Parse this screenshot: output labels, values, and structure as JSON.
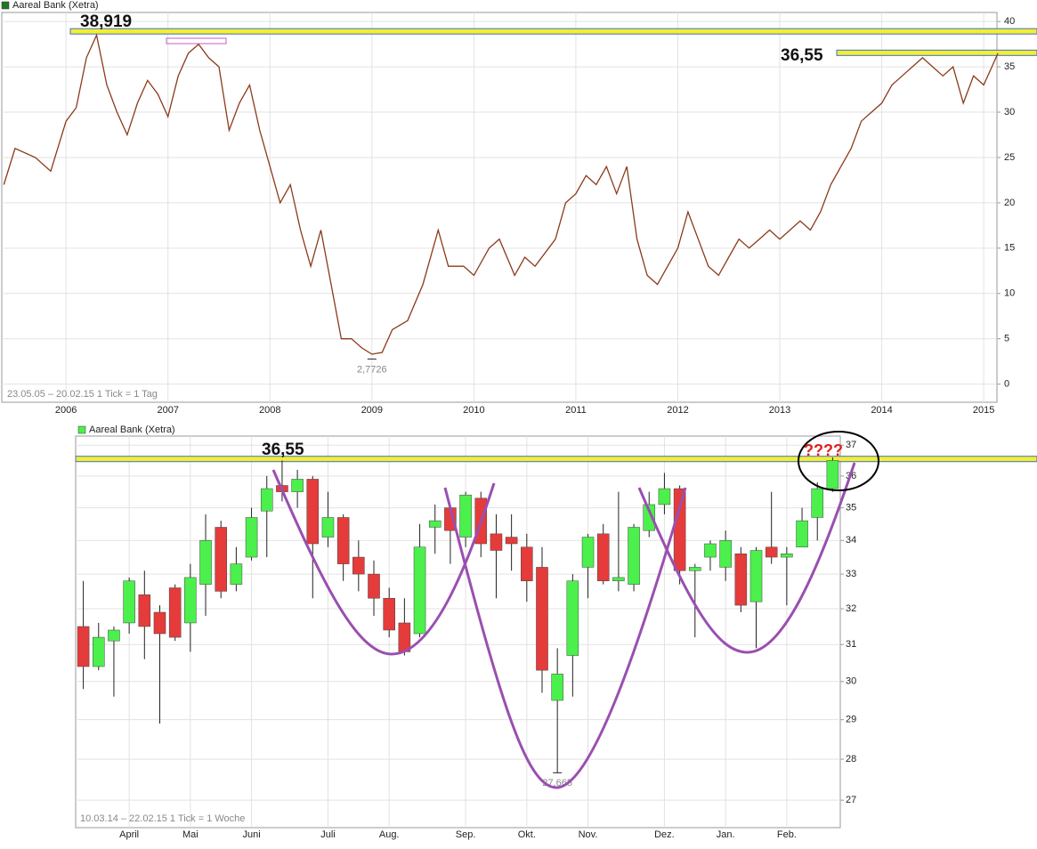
{
  "chart_data": [
    {
      "type": "line",
      "log": false,
      "x": [
        2005.39,
        2005.5,
        2005.7,
        2005.85,
        2006.0,
        2006.1,
        2006.2,
        2006.3,
        2006.4,
        2006.5,
        2006.6,
        2006.7,
        2006.8,
        2006.9,
        2007.0,
        2007.1,
        2007.2,
        2007.3,
        2007.4,
        2007.5,
        2007.6,
        2007.7,
        2007.8,
        2007.9,
        2008.0,
        2008.1,
        2008.2,
        2008.3,
        2008.4,
        2008.5,
        2008.6,
        2008.7,
        2008.8,
        2008.9,
        2009.0,
        2009.1,
        2009.2,
        2009.35,
        2009.5,
        2009.65,
        2009.75,
        2009.9,
        2010.0,
        2010.15,
        2010.25,
        2010.4,
        2010.5,
        2010.6,
        2010.8,
        2010.9,
        2011.0,
        2011.1,
        2011.2,
        2011.3,
        2011.4,
        2011.5,
        2011.6,
        2011.7,
        2011.8,
        2011.9,
        2012.0,
        2012.1,
        2012.2,
        2012.3,
        2012.4,
        2012.5,
        2012.6,
        2012.7,
        2012.8,
        2012.9,
        2013.0,
        2013.1,
        2013.2,
        2013.3,
        2013.4,
        2013.5,
        2013.6,
        2013.7,
        2013.8,
        2013.9,
        2014.0,
        2014.1,
        2014.2,
        2014.3,
        2014.4,
        2014.5,
        2014.6,
        2014.7,
        2014.8,
        2014.9,
        2015.0,
        2015.1,
        2015.14
      ],
      "series": [
        {
          "name": "Aareal Bank (Xetra)",
          "color": "#1f7a1f",
          "line_color": "#8b3a1a",
          "values": [
            22,
            26,
            25,
            23.5,
            29,
            30.5,
            36,
            38.5,
            33,
            30,
            27.5,
            31,
            33.5,
            32,
            29.5,
            34,
            36.5,
            37.5,
            36,
            35,
            28,
            31,
            33,
            28,
            24,
            20,
            22,
            17,
            13,
            17,
            11,
            5,
            5,
            4,
            3.3,
            3.5,
            6,
            7,
            11,
            17,
            13,
            13,
            12,
            15,
            16,
            12,
            14,
            13,
            16,
            20,
            21,
            23,
            22,
            24,
            21,
            24,
            16,
            12,
            11,
            13,
            15,
            19,
            16,
            13,
            12,
            14,
            16,
            15,
            16,
            17,
            16,
            17,
            18,
            17,
            19,
            22,
            24,
            26,
            29,
            30,
            31,
            33,
            34,
            35,
            36,
            35,
            34,
            35,
            31,
            34,
            33,
            35.5,
            36.5
          ]
        }
      ],
      "xlim": [
        2005.37,
        2015.13
      ],
      "xticks": [
        2006,
        2007,
        2008,
        2009,
        2010,
        2011,
        2012,
        2013,
        2014,
        2015
      ],
      "ylim": [
        -2,
        41
      ],
      "yticks": [
        0,
        5,
        10,
        15,
        20,
        25,
        30,
        35,
        40
      ],
      "grid": true,
      "levels": [
        {
          "label": "38,919",
          "value": 38.919
        },
        {
          "label": "36,55",
          "value": 36.55
        }
      ],
      "low_label": {
        "label": "2,7726",
        "value": 2.7726
      },
      "footer": "23.05.05 – 20.02.15   1 Tick = 1 Tag"
    },
    {
      "type": "candlestick",
      "log": true,
      "categories": [
        null,
        null,
        null,
        "April",
        null,
        null,
        null,
        "Mai",
        null,
        null,
        null,
        "Juni",
        null,
        null,
        null,
        null,
        "Juli",
        null,
        null,
        null,
        "Aug.",
        null,
        null,
        null,
        null,
        "Sep.",
        null,
        null,
        null,
        "Okt.",
        null,
        null,
        null,
        "Nov.",
        null,
        null,
        null,
        null,
        "Dez.",
        null,
        null,
        null,
        "Jan.",
        null,
        null,
        null,
        "Feb.",
        null,
        null,
        null
      ],
      "series": [
        {
          "name": "Aareal Bank (Xetra)",
          "up_color": "#4cf04c",
          "down_color": "#e53b3b",
          "open": [
            31.5,
            30.4,
            31.1,
            31.6,
            32.4,
            31.9,
            32.6,
            31.6,
            32.7,
            34.4,
            32.7,
            33.5,
            34.9,
            35.7,
            35.5,
            35.9,
            34.1,
            34.7,
            33.5,
            33.0,
            32.3,
            31.6,
            31.3,
            34.4,
            35.0,
            34.1,
            35.3,
            34.2,
            34.1,
            33.8,
            33.2,
            29.5,
            30.7,
            33.2,
            34.2,
            32.8,
            32.7,
            34.3,
            35.1,
            35.6,
            33.1,
            33.5,
            33.2,
            33.6,
            32.2,
            33.8,
            33.5,
            33.8,
            34.7,
            35.6
          ],
          "high": [
            32.8,
            31.6,
            31.5,
            32.9,
            33.1,
            32.1,
            32.7,
            33.3,
            34.8,
            34.6,
            33.8,
            35.0,
            36.0,
            36.5,
            36.2,
            36.0,
            35.5,
            34.8,
            34.0,
            33.4,
            32.6,
            32.3,
            34.5,
            35.1,
            35.1,
            35.5,
            35.5,
            34.8,
            34.8,
            34.2,
            33.8,
            30.9,
            33.0,
            34.2,
            34.5,
            35.5,
            34.5,
            35.5,
            36.1,
            35.7,
            33.3,
            34.0,
            34.3,
            33.8,
            33.8,
            35.5,
            33.8,
            35.0,
            35.8,
            36.6
          ],
          "low": [
            29.8,
            30.3,
            29.6,
            31.3,
            30.6,
            28.9,
            31.1,
            30.8,
            31.8,
            32.3,
            32.5,
            33.4,
            33.5,
            35.2,
            35.0,
            32.3,
            33.8,
            32.8,
            32.5,
            31.8,
            31.2,
            30.7,
            31.2,
            33.6,
            33.3,
            33.8,
            33.5,
            32.3,
            33.1,
            32.2,
            29.7,
            27.665,
            29.6,
            32.3,
            32.7,
            32.5,
            32.5,
            34.1,
            34.8,
            32.7,
            31.2,
            33.1,
            32.8,
            31.9,
            30.9,
            33.3,
            32.1,
            33.8,
            34.0,
            35.5
          ],
          "close": [
            30.4,
            31.2,
            31.4,
            32.8,
            31.5,
            31.3,
            31.2,
            32.9,
            34.0,
            32.5,
            33.3,
            34.7,
            35.6,
            35.5,
            35.9,
            33.9,
            34.7,
            33.3,
            33.0,
            32.3,
            31.4,
            30.8,
            33.8,
            34.6,
            34.3,
            35.4,
            33.9,
            33.7,
            33.9,
            32.8,
            30.3,
            30.2,
            32.8,
            34.1,
            32.8,
            32.9,
            34.4,
            35.1,
            35.6,
            33.1,
            33.2,
            33.9,
            34.0,
            32.1,
            33.7,
            33.5,
            33.6,
            34.6,
            35.6,
            36.5
          ]
        }
      ],
      "ylim": [
        26.35,
        37.3
      ],
      "yticks": [
        27,
        28,
        29,
        30,
        31,
        32,
        33,
        34,
        35,
        36,
        37
      ],
      "grid": true,
      "levels": [
        {
          "label": "36,55",
          "value": 36.55
        }
      ],
      "low_label": {
        "label": "27,665",
        "value": 27.665
      },
      "annotation": "????",
      "footer": "10.03.14 – 22.02.15   1 Tick = 1 Woche"
    }
  ]
}
